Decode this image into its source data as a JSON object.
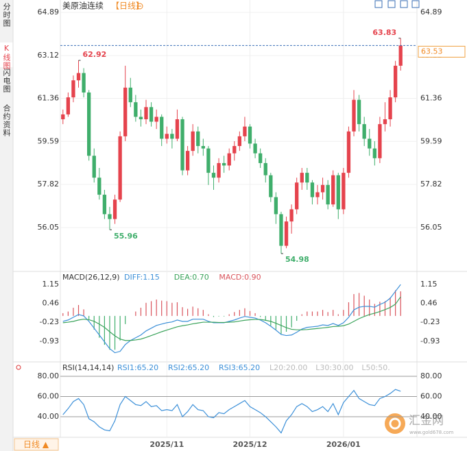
{
  "header": {
    "title": "美原油连续",
    "period": "【日线】"
  },
  "sidebar": [
    "分时图",
    "K线图",
    "闪电图",
    "合约资料"
  ],
  "footer": {
    "period": "日线 ▲"
  },
  "watermark": {
    "name": "汇金网",
    "url": "www.gold678.com"
  },
  "chart_data": [
    {
      "type": "candlestick",
      "categories": [
        null,
        null,
        null,
        null,
        null,
        null,
        null,
        null,
        null,
        null,
        null,
        null,
        null,
        null,
        null,
        null,
        null,
        null,
        null,
        null,
        "2025/11",
        null,
        null,
        null,
        null,
        null,
        null,
        null,
        null,
        null,
        null,
        null,
        null,
        null,
        null,
        null,
        "2025/12",
        null,
        null,
        null,
        null,
        null,
        null,
        null,
        null,
        null,
        null,
        null,
        null,
        null,
        null,
        null,
        null,
        null,
        "2026/01",
        null,
        null,
        null,
        null,
        null,
        null,
        null,
        null,
        null,
        null,
        null
      ],
      "ohlc": [
        [
          60.5,
          60.9,
          60.3,
          60.7
        ],
        [
          60.7,
          61.6,
          60.6,
          61.4
        ],
        [
          61.4,
          62.3,
          61.2,
          62.1
        ],
        [
          62.1,
          62.92,
          61.8,
          62.4
        ],
        [
          62.4,
          62.6,
          61.4,
          61.6
        ],
        [
          61.6,
          61.7,
          58.8,
          59.0
        ],
        [
          59.0,
          59.3,
          57.9,
          58.1
        ],
        [
          58.1,
          58.5,
          57.2,
          57.4
        ],
        [
          57.4,
          57.6,
          56.4,
          56.6
        ],
        [
          56.6,
          56.9,
          55.96,
          56.4
        ],
        [
          56.4,
          57.4,
          56.2,
          57.2
        ],
        [
          57.2,
          60.0,
          57.1,
          59.8
        ],
        [
          59.8,
          62.7,
          59.6,
          61.8
        ],
        [
          61.8,
          62.2,
          61.0,
          61.2
        ],
        [
          61.2,
          61.5,
          60.4,
          60.6
        ],
        [
          60.6,
          60.9,
          60.2,
          60.5
        ],
        [
          60.5,
          61.3,
          60.3,
          61.0
        ],
        [
          61.0,
          61.2,
          60.2,
          60.4
        ],
        [
          60.4,
          60.9,
          60.1,
          60.6
        ],
        [
          60.6,
          60.7,
          59.4,
          59.7
        ],
        [
          59.7,
          60.2,
          59.5,
          59.9
        ],
        [
          59.9,
          60.1,
          59.3,
          59.7
        ],
        [
          59.7,
          60.9,
          59.6,
          60.5
        ],
        [
          60.5,
          60.6,
          58.2,
          58.4
        ],
        [
          58.4,
          59.4,
          58.2,
          59.2
        ],
        [
          59.2,
          60.3,
          59.0,
          60.0
        ],
        [
          60.0,
          60.2,
          59.1,
          59.4
        ],
        [
          59.4,
          59.7,
          59.0,
          59.3
        ],
        [
          59.3,
          59.4,
          57.8,
          58.3
        ],
        [
          58.3,
          58.6,
          57.6,
          58.1
        ],
        [
          58.1,
          58.9,
          57.9,
          58.7
        ],
        [
          58.7,
          59.0,
          58.3,
          58.6
        ],
        [
          58.6,
          59.3,
          58.4,
          59.1
        ],
        [
          59.1,
          59.6,
          58.8,
          59.4
        ],
        [
          59.4,
          60.0,
          59.2,
          59.8
        ],
        [
          59.8,
          60.6,
          59.6,
          60.2
        ],
        [
          60.2,
          60.3,
          59.3,
          59.5
        ],
        [
          59.5,
          59.7,
          58.9,
          59.1
        ],
        [
          59.1,
          59.3,
          58.5,
          58.7
        ],
        [
          58.7,
          58.9,
          57.9,
          58.2
        ],
        [
          58.2,
          58.3,
          57.1,
          57.3
        ],
        [
          57.3,
          57.5,
          56.2,
          56.6
        ],
        [
          56.6,
          56.7,
          54.98,
          55.3
        ],
        [
          55.3,
          56.5,
          55.2,
          56.3
        ],
        [
          56.3,
          57.0,
          55.8,
          56.8
        ],
        [
          56.8,
          58.1,
          56.6,
          57.9
        ],
        [
          57.9,
          58.5,
          57.6,
          58.3
        ],
        [
          58.3,
          58.5,
          57.6,
          57.9
        ],
        [
          57.9,
          58.0,
          57.0,
          57.3
        ],
        [
          57.3,
          57.8,
          57.0,
          57.5
        ],
        [
          57.5,
          58.1,
          57.2,
          57.8
        ],
        [
          57.8,
          58.0,
          56.8,
          57.0
        ],
        [
          57.0,
          58.4,
          56.9,
          58.2
        ],
        [
          58.2,
          58.3,
          56.4,
          56.8
        ],
        [
          56.8,
          58.5,
          56.6,
          58.3
        ],
        [
          58.3,
          60.2,
          58.1,
          60.0
        ],
        [
          60.0,
          61.7,
          59.8,
          61.3
        ],
        [
          61.3,
          61.5,
          60.0,
          60.3
        ],
        [
          60.3,
          60.6,
          59.4,
          59.7
        ],
        [
          59.7,
          60.1,
          59.0,
          59.3
        ],
        [
          59.3,
          59.6,
          58.6,
          58.9
        ],
        [
          58.9,
          60.6,
          58.7,
          60.3
        ],
        [
          60.3,
          61.2,
          60.0,
          60.5
        ],
        [
          60.5,
          61.7,
          60.2,
          61.4
        ],
        [
          61.4,
          62.9,
          61.2,
          62.7
        ],
        [
          62.7,
          63.83,
          62.5,
          63.53
        ]
      ],
      "up_color": "#e5434d",
      "down_color": "#3fae6b",
      "ylim": [
        54.36,
        65.26
      ],
      "yticks": [
        64.89,
        63.12,
        61.36,
        59.59,
        57.82,
        56.05
      ],
      "grid": true
    },
    {
      "type": "macd",
      "title": "MACD(26,12,9)",
      "series": [
        {
          "name": "DIFF:1.15",
          "type": "line",
          "color": "#3b8fd8",
          "values": [
            -0.2,
            -0.15,
            -0.05,
            0.05,
            0.0,
            -0.2,
            -0.45,
            -0.7,
            -0.95,
            -1.2,
            -1.35,
            -1.3,
            -1.05,
            -0.9,
            -0.8,
            -0.7,
            -0.55,
            -0.45,
            -0.35,
            -0.3,
            -0.25,
            -0.22,
            -0.15,
            -0.2,
            -0.2,
            -0.12,
            -0.12,
            -0.12,
            -0.2,
            -0.25,
            -0.25,
            -0.25,
            -0.2,
            -0.15,
            -0.08,
            -0.02,
            -0.05,
            -0.08,
            -0.15,
            -0.25,
            -0.38,
            -0.52,
            -0.68,
            -0.72,
            -0.7,
            -0.6,
            -0.48,
            -0.42,
            -0.4,
            -0.38,
            -0.33,
            -0.35,
            -0.28,
            -0.35,
            -0.25,
            -0.05,
            0.22,
            0.32,
            0.35,
            0.35,
            0.32,
            0.42,
            0.5,
            0.65,
            0.9,
            1.15
          ]
        },
        {
          "name": "DEA:0.70",
          "type": "line",
          "color": "#3aa35a",
          "values": [
            -0.25,
            -0.23,
            -0.2,
            -0.15,
            -0.12,
            -0.14,
            -0.2,
            -0.3,
            -0.42,
            -0.58,
            -0.73,
            -0.85,
            -0.9,
            -0.9,
            -0.88,
            -0.85,
            -0.79,
            -0.72,
            -0.65,
            -0.58,
            -0.52,
            -0.46,
            -0.4,
            -0.36,
            -0.33,
            -0.29,
            -0.26,
            -0.23,
            -0.23,
            -0.23,
            -0.24,
            -0.24,
            -0.23,
            -0.22,
            -0.19,
            -0.16,
            -0.14,
            -0.13,
            -0.13,
            -0.16,
            -0.2,
            -0.27,
            -0.35,
            -0.43,
            -0.49,
            -0.51,
            -0.51,
            -0.5,
            -0.48,
            -0.46,
            -0.44,
            -0.42,
            -0.39,
            -0.38,
            -0.36,
            -0.3,
            -0.2,
            -0.1,
            -0.02,
            0.05,
            0.1,
            0.16,
            0.23,
            0.31,
            0.43,
            0.7
          ]
        },
        {
          "name": "MACD:0.90",
          "type": "bar",
          "color": "#d9535b",
          "negative_color": "#3fae6b",
          "values": [
            0.1,
            0.16,
            0.3,
            0.4,
            0.24,
            -0.12,
            -0.5,
            -0.8,
            -1.06,
            -1.24,
            -1.24,
            -0.9,
            -0.3,
            0,
            0.16,
            0.3,
            0.48,
            0.54,
            0.6,
            0.56,
            0.54,
            0.48,
            0.5,
            0.32,
            0.26,
            0.34,
            0.28,
            0.22,
            0.06,
            -0.04,
            -0.02,
            -0.02,
            0.06,
            0.14,
            0.22,
            0.28,
            0.18,
            0.1,
            -0.04,
            -0.18,
            -0.36,
            -0.5,
            -0.66,
            -0.58,
            -0.42,
            -0.18,
            0.06,
            0.16,
            0.16,
            0.16,
            0.22,
            0.14,
            0.22,
            0.06,
            0.22,
            0.5,
            0.8,
            0.84,
            0.74,
            0.6,
            0.44,
            0.52,
            0.54,
            0.68,
            0.94,
            0.9
          ]
        }
      ],
      "ylim": [
        -1.61,
        1.58
      ],
      "yticks": [
        1.15,
        0.46,
        -0.23,
        -0.93
      ]
    },
    {
      "type": "line",
      "title": "RSI(14,14,14)",
      "series": [
        {
          "name": "RSI1:65.20",
          "color": "#3b8fd8",
          "values": [
            42,
            48,
            55,
            58,
            52,
            38,
            35,
            30,
            27,
            26,
            36,
            52,
            60,
            56,
            52,
            51,
            55,
            50,
            51,
            46,
            47,
            46,
            52,
            40,
            45,
            52,
            47,
            46,
            40,
            39,
            44,
            43,
            47,
            50,
            53,
            56,
            50,
            47,
            44,
            40,
            35,
            30,
            24,
            36,
            42,
            50,
            53,
            50,
            45,
            47,
            50,
            45,
            53,
            42,
            54,
            60,
            66,
            58,
            55,
            52,
            51,
            58,
            60,
            63,
            67,
            65.2
          ]
        }
      ],
      "legend_texts": [
        "RSI2:65.20",
        "RSI3:65.20",
        "L20:20.00",
        "L30:30.00",
        "L50:50."
      ],
      "ylim": [
        21,
        86.1
      ],
      "yticks": [
        {
          "value": 80,
          "label": "80.00"
        },
        {
          "value": 60,
          "label": "60.00"
        },
        {
          "value": 40,
          "label": "40.00"
        }
      ]
    }
  ]
}
